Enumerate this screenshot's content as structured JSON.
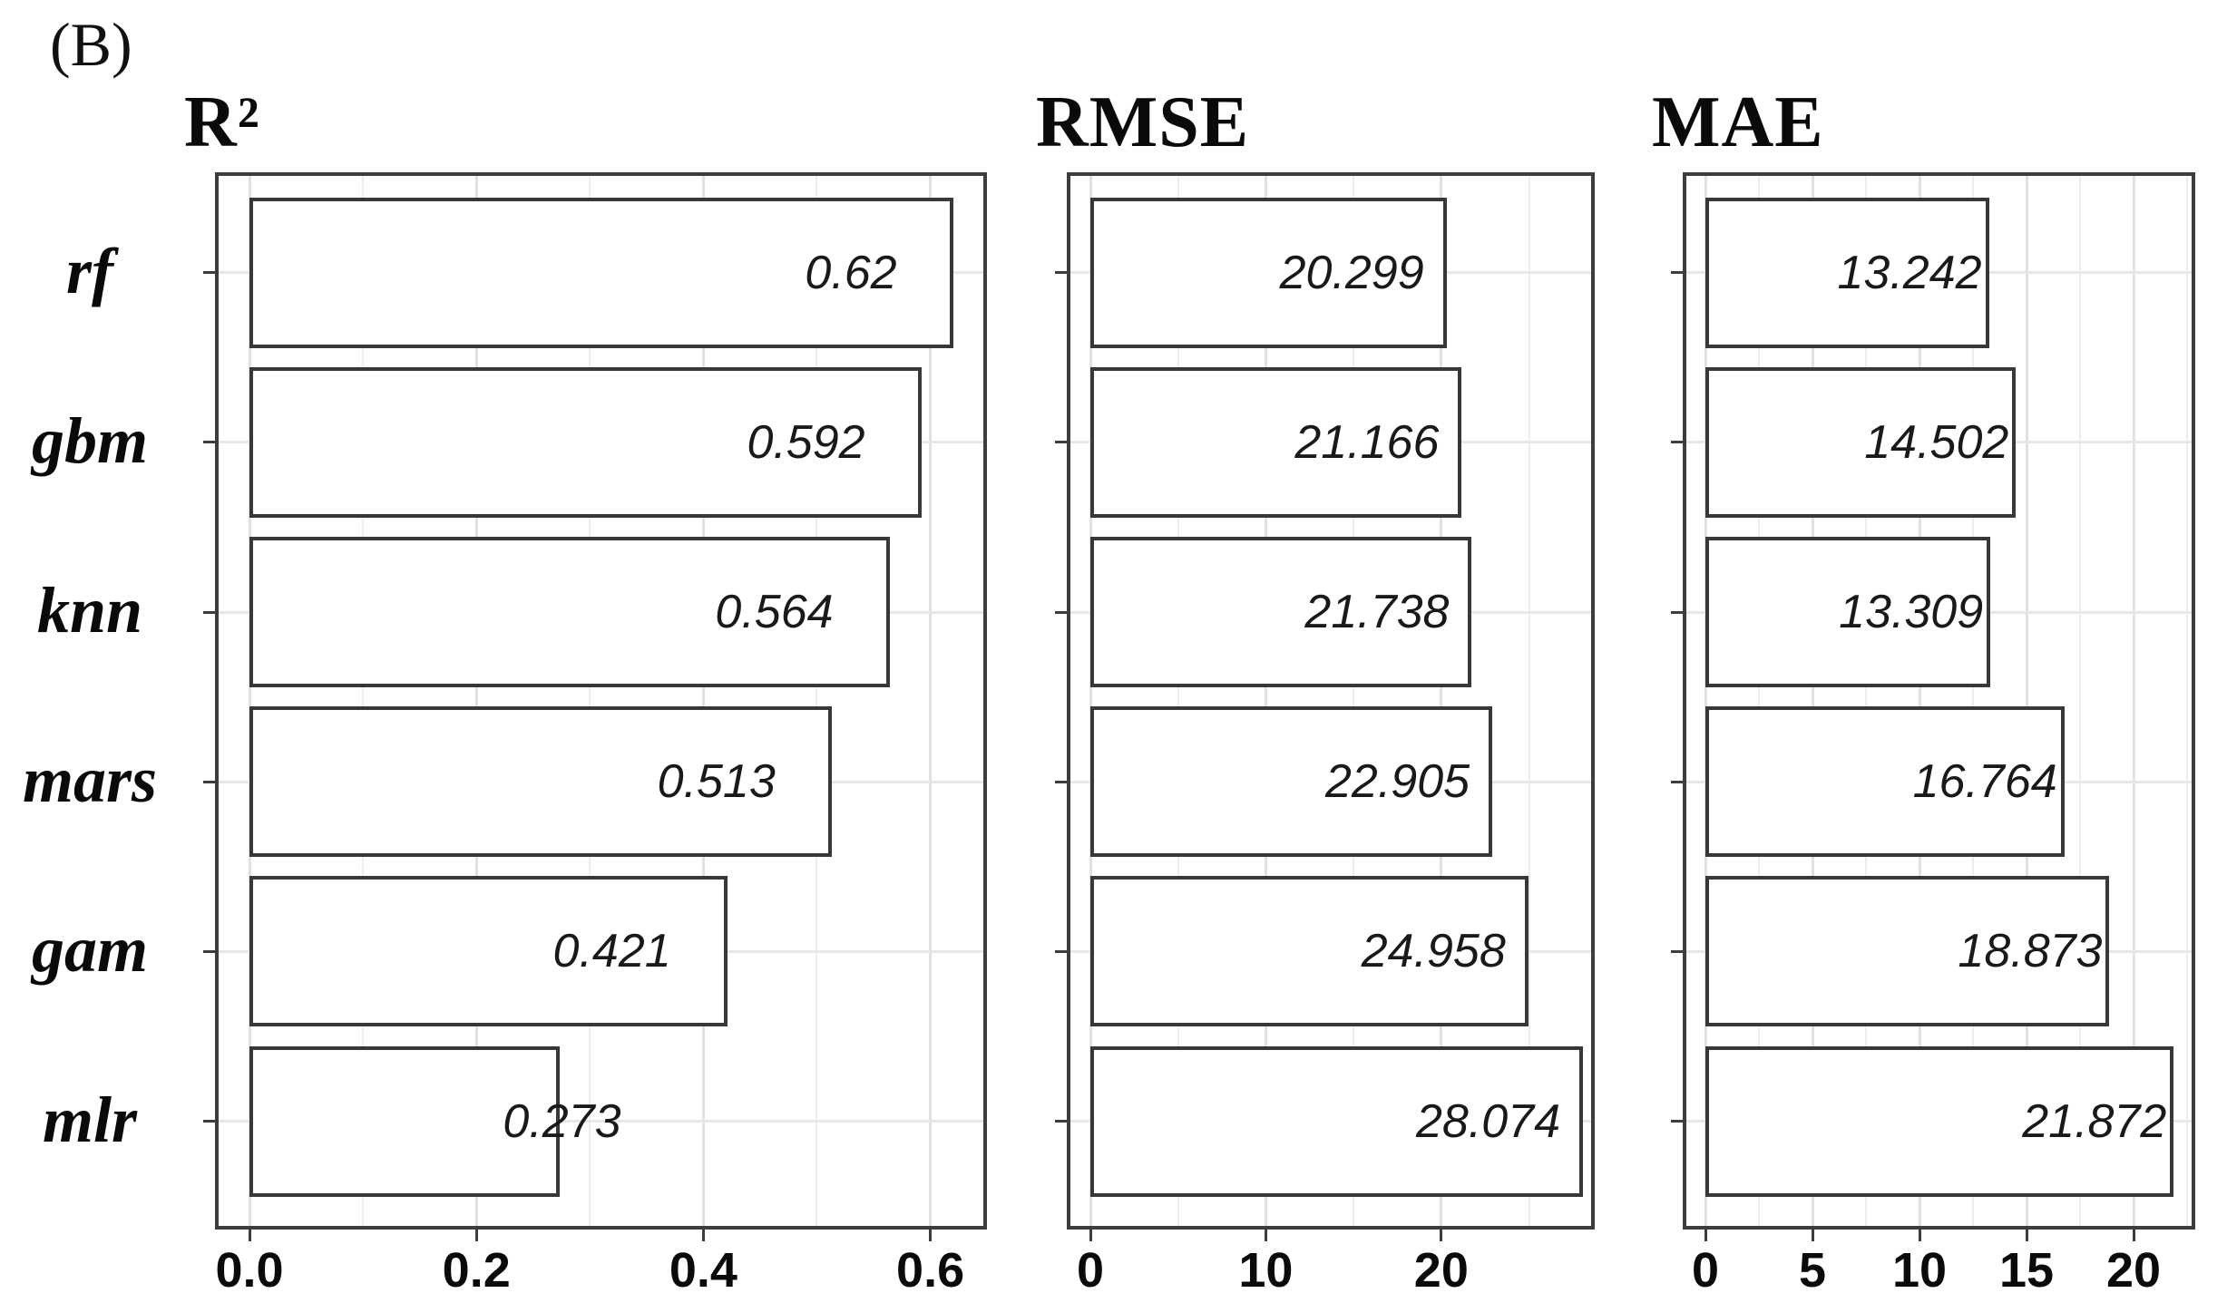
{
  "figure_label": "(B)",
  "y_axis": {
    "categories": [
      "rf",
      "gbm",
      "knn",
      "mars",
      "gam",
      "mlr"
    ]
  },
  "chart_data": [
    {
      "type": "bar",
      "orientation": "horizontal",
      "title": "R²",
      "categories": [
        "rf",
        "gbm",
        "knn",
        "mars",
        "gam",
        "mlr"
      ],
      "values": [
        0.62,
        0.592,
        0.564,
        0.513,
        0.421,
        0.273
      ],
      "value_labels": [
        "0.62",
        "0.592",
        "0.564",
        "0.513",
        "0.421",
        "0.273"
      ],
      "xlim": [
        -0.0272,
        0.6467
      ],
      "x_ticks": [
        0,
        0.2,
        0.4,
        0.6
      ],
      "x_tick_labels": [
        "0.0",
        "0.2",
        "0.4",
        "0.6"
      ],
      "x_minor_ticks": [
        0.1,
        0.3,
        0.5
      ],
      "grid": true,
      "legend": "none",
      "bar_fill": "#ffffff",
      "bar_border_color": "#383838",
      "value_label_color": "#191919"
    },
    {
      "type": "bar",
      "orientation": "horizontal",
      "title": "RMSE",
      "categories": [
        "rf",
        "gbm",
        "knn",
        "mars",
        "gam",
        "mlr"
      ],
      "values": [
        20.299,
        21.166,
        21.738,
        22.905,
        24.958,
        28.074
      ],
      "value_labels": [
        "20.299",
        "21.166",
        "21.738",
        "22.905",
        "24.958",
        "28.074"
      ],
      "xlim": [
        -1.14,
        28.54
      ],
      "x_ticks": [
        0,
        10,
        20
      ],
      "x_tick_labels": [
        "0",
        "10",
        "20"
      ],
      "x_minor_ticks": [
        5,
        15,
        25
      ],
      "grid": true,
      "legend": "none",
      "bar_fill": "#ffffff",
      "bar_border_color": "#383838",
      "value_label_color": "#191919"
    },
    {
      "type": "bar",
      "orientation": "horizontal",
      "title": "MAE",
      "categories": [
        "rf",
        "gbm",
        "knn",
        "mars",
        "gam",
        "mlr"
      ],
      "values": [
        13.242,
        14.502,
        13.309,
        16.764,
        18.873,
        21.872
      ],
      "value_labels": [
        "13.242",
        "14.502",
        "13.309",
        "16.764",
        "18.873",
        "21.872"
      ],
      "xlim": [
        -0.89,
        22.71
      ],
      "x_ticks": [
        0,
        5,
        10,
        15,
        20
      ],
      "x_tick_labels": [
        "0",
        "5",
        "10",
        "15",
        "20"
      ],
      "x_minor_ticks": [
        2.5,
        7.5,
        12.5,
        17.5,
        22.5
      ],
      "grid": true,
      "legend": "none",
      "bar_fill": "#ffffff",
      "bar_border_color": "#383838",
      "value_label_color": "#191919"
    }
  ]
}
